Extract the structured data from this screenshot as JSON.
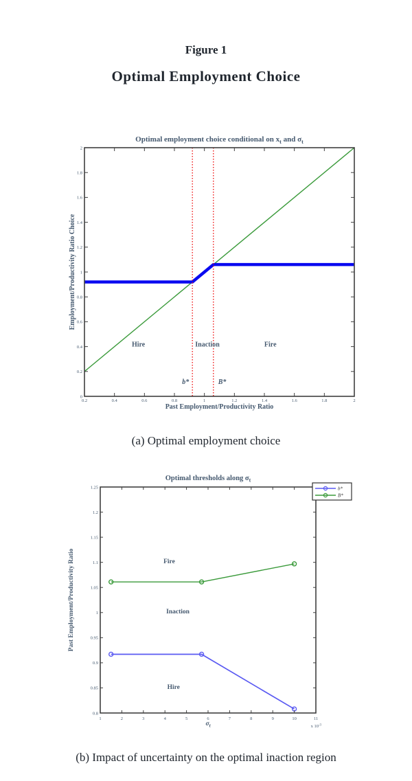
{
  "page": {
    "figure_label": "Figure 1",
    "figure_title": "Optimal Employment Choice",
    "caption_a": "(a) Optimal employment choice",
    "caption_b": "(b) Impact of uncertainty on the optimal inaction region"
  },
  "colors": {
    "policy_blue": "#0a0af0",
    "diagonal_green": "#3a9a3a",
    "threshold_red": "#f01818",
    "chart_text": "#44586e",
    "axis": "#3f3f3f"
  },
  "chart_data": [
    {
      "type": "line",
      "panel": "a",
      "title": "Optimal employment choice conditional on x_t and σ_t",
      "xlabel": "Past Employment/Productivity Ratio",
      "ylabel": "Employment/Productivity Ratio Choice",
      "xlim": [
        0.2,
        2
      ],
      "ylim": [
        0,
        2
      ],
      "grid": false,
      "legend": null,
      "xticks": [
        0.2,
        0.4,
        0.6,
        0.8,
        1,
        1.2,
        1.4,
        1.6,
        1.8,
        2
      ],
      "xtick_labels": [
        "0.2",
        "0.4",
        "0.6",
        "0.8",
        "1",
        "1.2",
        "1.4",
        "1.6",
        "1.8",
        "2"
      ],
      "yticks": [
        0,
        0.2,
        0.4,
        0.6,
        0.8,
        1,
        1.2,
        1.4,
        1.6,
        1.8,
        2
      ],
      "ytick_labels": [
        "0",
        "0.2",
        "0.4",
        "0.6",
        "0.8",
        "1",
        "1.2",
        "1.4",
        "1.6",
        "1.8",
        "2"
      ],
      "series": [
        {
          "name": "45-degree line",
          "color": "#3a9a3a",
          "width": 1.4,
          "points": [
            [
              0.2,
              0.2
            ],
            [
              2,
              2
            ]
          ]
        },
        {
          "name": "optimal employment choice",
          "color": "#0a0af0",
          "width": 4.5,
          "points": [
            [
              0.2,
              0.92
            ],
            [
              0.92,
              0.92
            ],
            [
              1.06,
              1.06
            ],
            [
              2,
              1.06
            ]
          ]
        }
      ],
      "thresholds": [
        {
          "x": 0.92,
          "label": "b*",
          "label_side": "left",
          "label_y": 0.1,
          "color": "#f01818"
        },
        {
          "x": 1.06,
          "label": "B*",
          "label_side": "right",
          "label_y": 0.1,
          "color": "#f01818"
        }
      ],
      "region_labels": [
        {
          "text": "Hire",
          "x": 0.56,
          "y": 0.4
        },
        {
          "text": "Inaction",
          "x": 1.02,
          "y": 0.4
        },
        {
          "text": "Fire",
          "x": 1.44,
          "y": 0.4
        }
      ]
    },
    {
      "type": "line",
      "panel": "b",
      "title": "Optimal thresholds along σ_t",
      "xlabel": "σ_t",
      "ylabel": "Past Employment/Productivity Ratio",
      "x_scale": "x 10^-3",
      "xlim": [
        1,
        11
      ],
      "ylim": [
        0.8,
        1.25
      ],
      "grid": false,
      "xticks": [
        1,
        2,
        3,
        4,
        5,
        6,
        7,
        8,
        9,
        10,
        11
      ],
      "xtick_labels": [
        "1",
        "2",
        "3",
        "4",
        "5",
        "6",
        "7",
        "8",
        "9",
        "10",
        "11"
      ],
      "yticks": [
        0.8,
        0.85,
        0.9,
        0.95,
        1,
        1.05,
        1.1,
        1.15,
        1.2,
        1.25
      ],
      "ytick_labels": [
        "0.8",
        "0.85",
        "0.9",
        "0.95",
        "1",
        "1.05",
        "1.1",
        "1.15",
        "1.2",
        "1.25"
      ],
      "series": [
        {
          "name": "b*",
          "color": "#5a5af2",
          "width": 1.7,
          "marker": "circle",
          "x": [
            1.5,
            5.7,
            10
          ],
          "y": [
            0.917,
            0.917,
            0.808
          ]
        },
        {
          "name": "B*",
          "color": "#3a9a3a",
          "width": 1.4,
          "marker": "circle",
          "x": [
            1.5,
            5.7,
            10
          ],
          "y": [
            1.061,
            1.061,
            1.097
          ]
        }
      ],
      "region_labels": [
        {
          "text": "Fire",
          "x": 4.2,
          "y": 1.098
        },
        {
          "text": "Inaction",
          "x": 4.6,
          "y": 0.998
        },
        {
          "text": "Hire",
          "x": 4.4,
          "y": 0.848
        }
      ],
      "legend": {
        "position": "outside-top-right",
        "entries": [
          {
            "label": "b*",
            "color": "#5a5af2"
          },
          {
            "label": "B*",
            "color": "#3a9a3a"
          }
        ]
      }
    }
  ]
}
